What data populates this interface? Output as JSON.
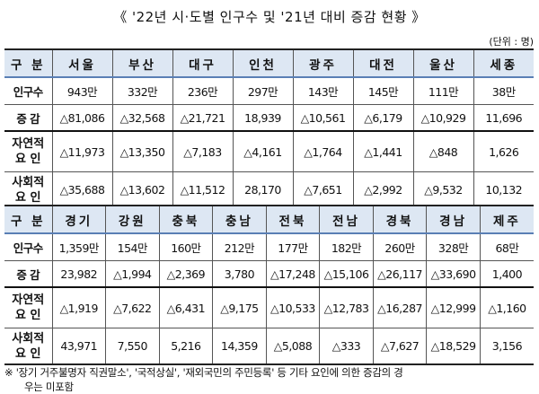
{
  "title": "《 '22년 시·도별 인구수 및 '21년 대비 증감 현황 》",
  "unit": "(단위 : 명)",
  "row_labels": {
    "header": "구 분",
    "population": "인구수",
    "change": "증 감",
    "natural_1": "자연적",
    "natural_2": "요  인",
    "social_1": "사회적",
    "social_2": "요  인"
  },
  "tables": [
    {
      "regions": [
        "서울",
        "부산",
        "대구",
        "인천",
        "광주",
        "대전",
        "울산",
        "세종"
      ],
      "population": [
        "943만",
        "332만",
        "236만",
        "297만",
        "143만",
        "145만",
        "111만",
        "38만"
      ],
      "change": [
        "△81,086",
        "△32,568",
        "△21,721",
        "18,939",
        "△10,561",
        "△6,179",
        "△10,929",
        "11,696"
      ],
      "natural": [
        "△11,973",
        "△13,350",
        "△7,183",
        "△4,161",
        "△1,764",
        "△1,441",
        "△848",
        "1,626"
      ],
      "social": [
        "△35,688",
        "△13,602",
        "△11,512",
        "28,170",
        "△7,651",
        "△2,992",
        "△9,532",
        "10,132"
      ]
    },
    {
      "regions": [
        "경기",
        "강원",
        "충북",
        "충남",
        "전북",
        "전남",
        "경북",
        "경남",
        "제주"
      ],
      "population": [
        "1,359만",
        "154만",
        "160만",
        "212만",
        "177만",
        "182만",
        "260만",
        "328만",
        "68만"
      ],
      "change": [
        "23,982",
        "△1,994",
        "△2,369",
        "3,780",
        "△17,248",
        "△15,106",
        "△26,117",
        "△33,690",
        "1,400"
      ],
      "natural": [
        "△1,919",
        "△7,622",
        "△6,431",
        "△9,175",
        "△10,533",
        "△12,783",
        "△16,287",
        "△12,999",
        "△1,160"
      ],
      "social": [
        "43,971",
        "7,550",
        "5,216",
        "14,359",
        "△5,088",
        "△333",
        "△7,627",
        "△18,529",
        "3,156"
      ]
    }
  ],
  "footnote_line1": "※ '장기 거주불명자 직권말소', '국적상실', '재외국민의 주민등록' 등 기타 요인에 의한 증감의 경",
  "footnote_line2": "우는 미포함",
  "colors": {
    "header_bg": "#dde7f3",
    "header_rule": "#5a7fb5"
  }
}
